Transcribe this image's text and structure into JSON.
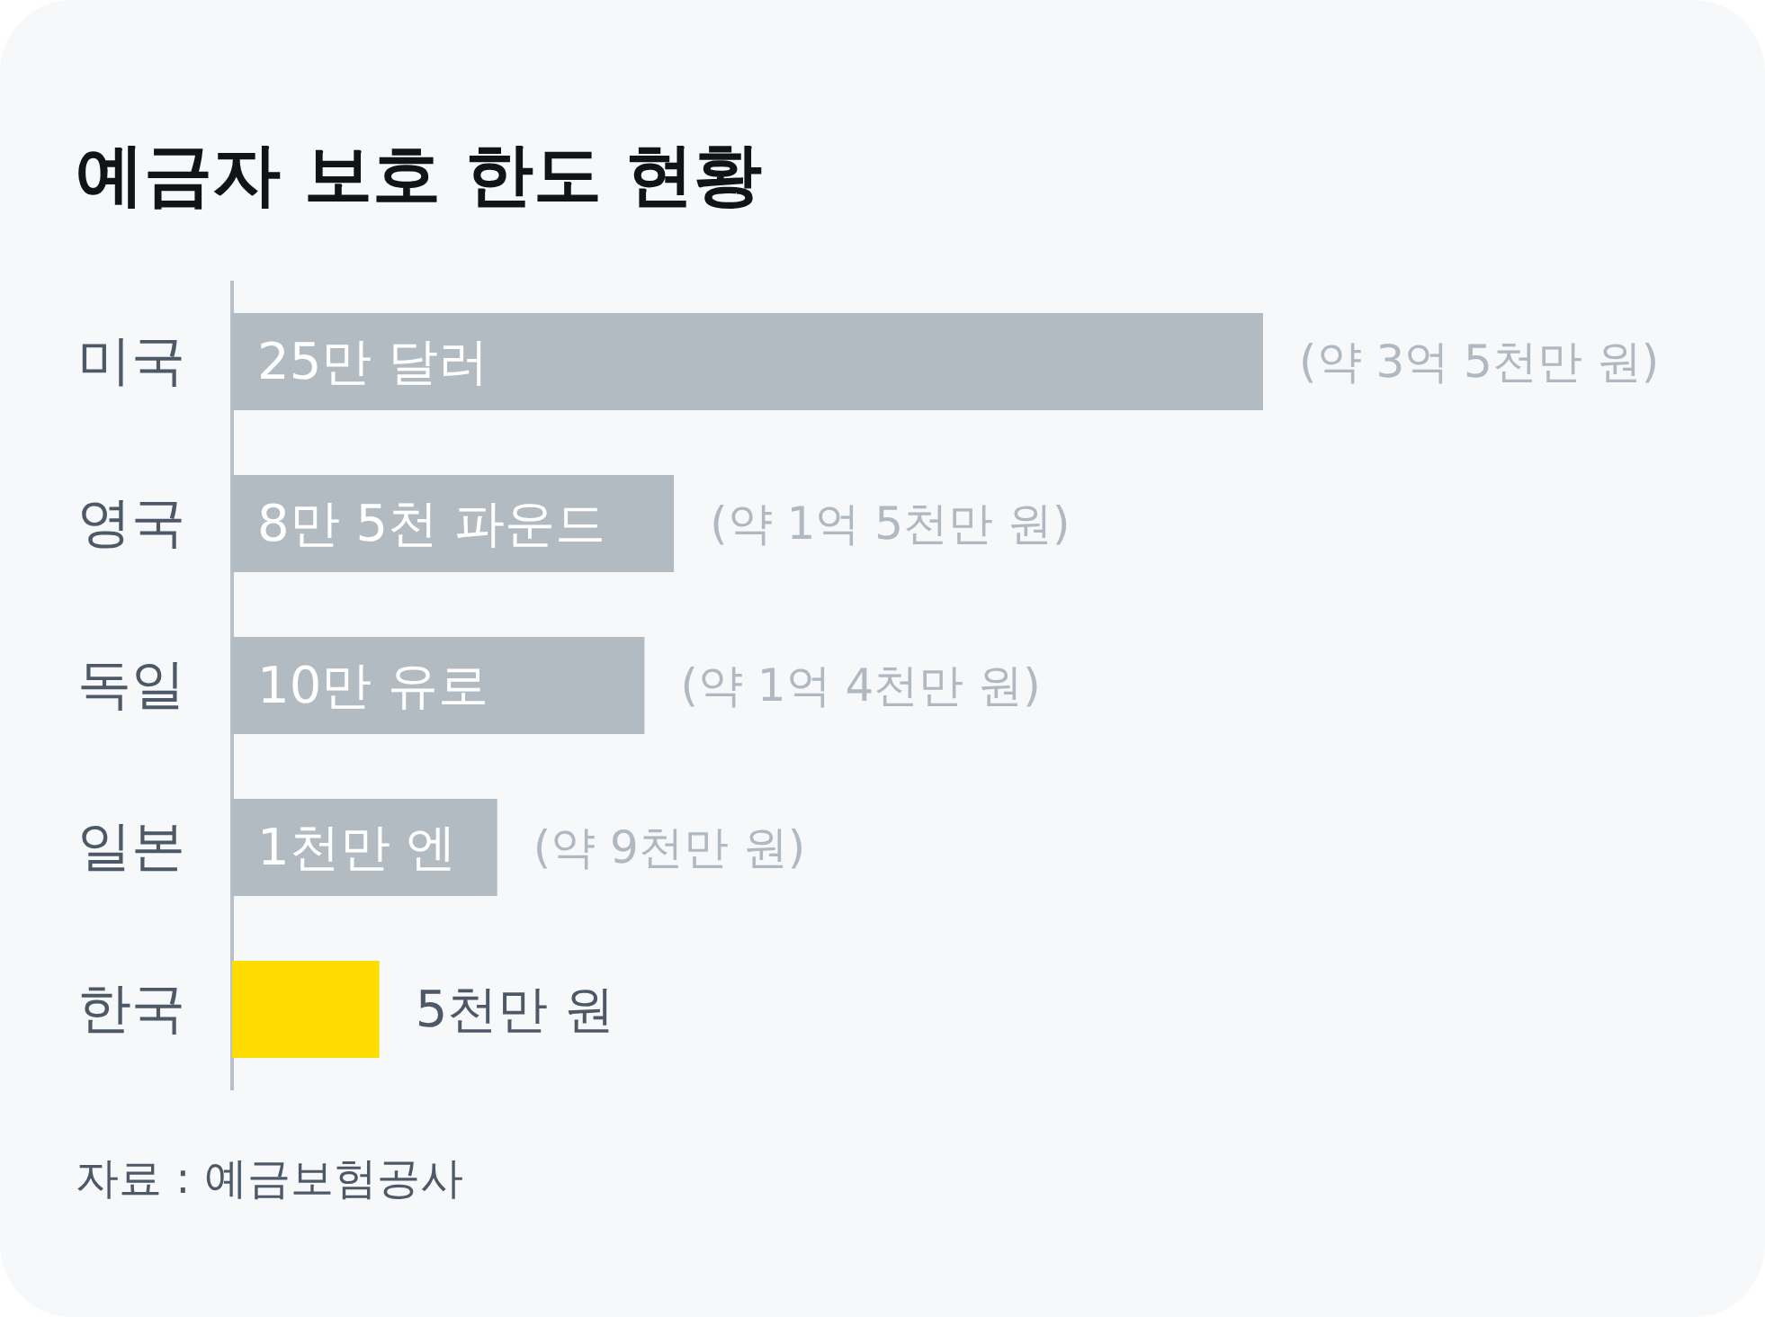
{
  "chart_data": {
    "type": "bar",
    "orientation": "horizontal",
    "title": "예금자 보호 한도 현황",
    "categories": [
      "미국",
      "영국",
      "독일",
      "일본",
      "한국"
    ],
    "values": [
      35,
      15,
      14,
      9,
      5
    ],
    "colors": [
      "#b2bac2",
      "#b2bac2",
      "#b2bac2",
      "#b2bac2",
      "#ffdc00"
    ],
    "value_labels": [
      "(약 3억 5천만 원)",
      "(약 1억 5천만 원)",
      "(약 1억 4천만 원)",
      "(약 9천만 원)",
      "5천만 원"
    ],
    "annotations": [
      "25만 달러",
      "8만 5천 파운드",
      "10만 유로",
      "1천만 엔",
      "자료 : 예금보험공사"
    ]
  }
}
